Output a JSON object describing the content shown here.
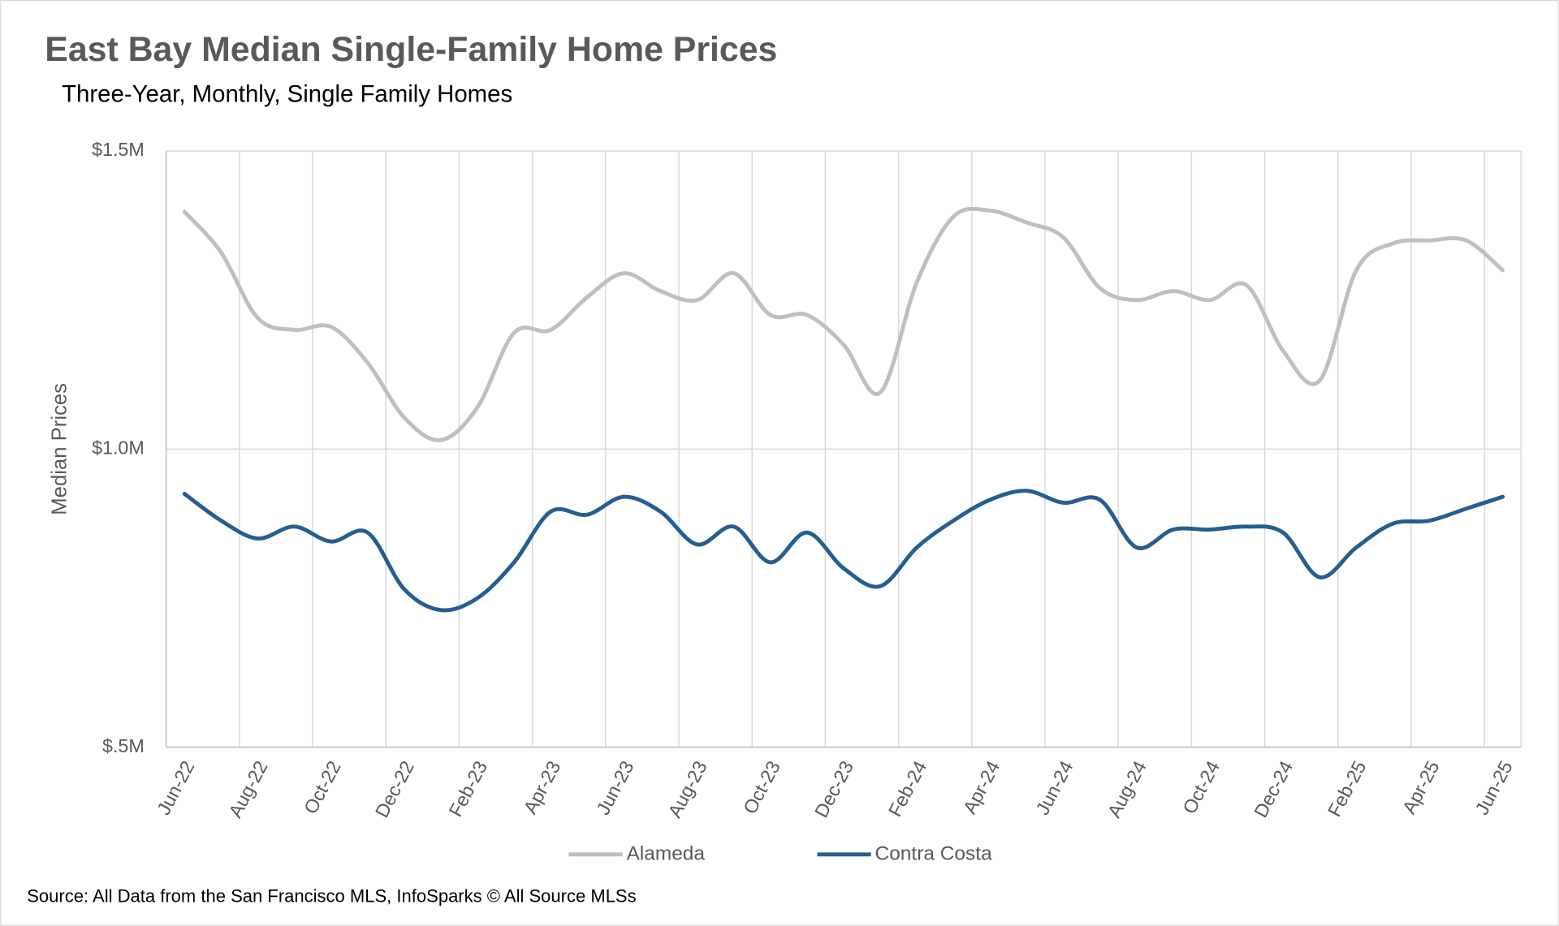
{
  "chart_data": {
    "type": "line",
    "title": "East Bay Median Single-Family Home Prices",
    "subtitle": "Three-Year, Monthly, Single Family Homes",
    "y_label": "Median Prices",
    "source": "Source: All Data from the San Francisco MLS, InfoSparks © All Source MLSs",
    "categories": [
      "Jun-22",
      null,
      "Aug-22",
      null,
      "Oct-22",
      null,
      "Dec-22",
      null,
      "Feb-23",
      null,
      "Apr-23",
      null,
      "Jun-23",
      null,
      "Aug-23",
      null,
      "Oct-23",
      null,
      "Dec-23",
      null,
      "Feb-24",
      null,
      "Apr-24",
      null,
      "Jun-24",
      null,
      "Aug-24",
      null,
      "Oct-24",
      null,
      "Dec-24",
      null,
      "Feb-25",
      null,
      "Apr-25",
      null,
      "Jun-25"
    ],
    "series": [
      {
        "name": "Alameda",
        "color": "#bfbfbf",
        "values": [
          1398000,
          1330000,
          1220000,
          1200000,
          1205000,
          1145000,
          1053000,
          1015000,
          1070000,
          1195000,
          1200000,
          1255000,
          1295000,
          1265000,
          1250000,
          1295000,
          1225000,
          1225000,
          1175000,
          1095000,
          1280000,
          1390000,
          1400000,
          1380000,
          1355000,
          1270000,
          1250000,
          1265000,
          1250000,
          1275000,
          1165000,
          1115000,
          1300000,
          1345000,
          1350000,
          1350000,
          1300000
        ]
      },
      {
        "name": "Contra Costa",
        "color": "#255e91",
        "values": [
          925000,
          880000,
          850000,
          870000,
          845000,
          860000,
          765000,
          730000,
          750000,
          810000,
          895000,
          890000,
          920000,
          895000,
          840000,
          870000,
          810000,
          860000,
          800000,
          770000,
          835000,
          880000,
          915000,
          930000,
          910000,
          915000,
          835000,
          865000,
          865000,
          870000,
          860000,
          785000,
          835000,
          875000,
          880000,
          900000,
          920000
        ]
      }
    ],
    "ylim": [
      500000,
      1500000
    ],
    "yticks": [
      {
        "value": 500000,
        "label": "$.5M"
      },
      {
        "value": 1000000,
        "label": "$1.0M"
      },
      {
        "value": 1500000,
        "label": "$1.5M"
      }
    ],
    "grid": true,
    "legend": "bottom"
  }
}
